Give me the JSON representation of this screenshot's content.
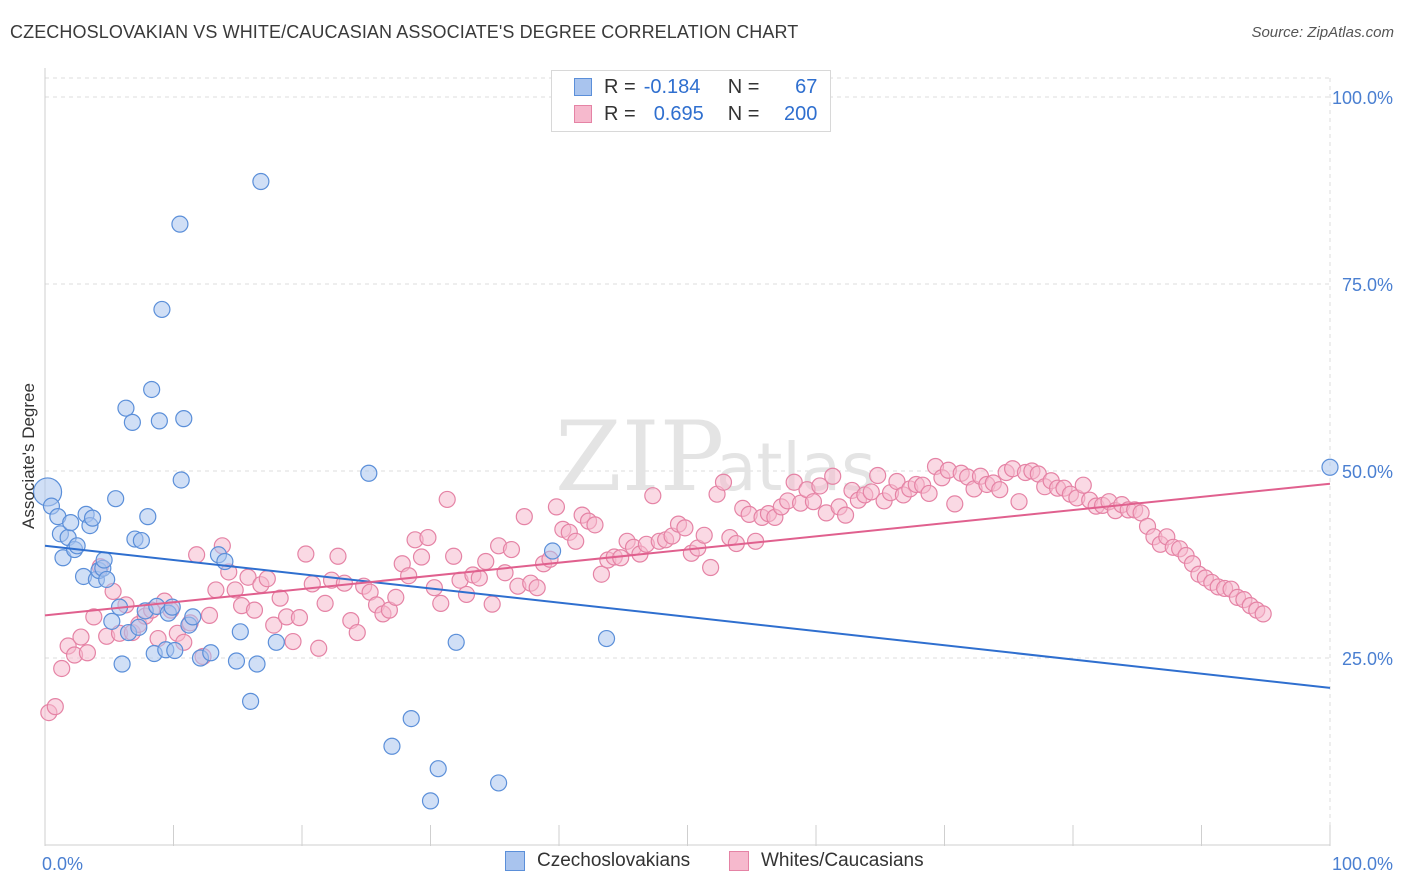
{
  "title": "CZECHOSLOVAKIAN VS WHITE/CAUCASIAN ASSOCIATE'S DEGREE CORRELATION CHART",
  "source": "Source: ZipAtlas.com",
  "watermark": {
    "zip": "ZIP",
    "atlas": "atlas"
  },
  "legend": {
    "rows": [
      {
        "r_label": "R =",
        "r_value": "-0.184",
        "n_label": "N =",
        "n_value": "67"
      },
      {
        "r_label": "R =",
        "r_value": "0.695",
        "n_label": "N =",
        "n_value": "200"
      }
    ]
  },
  "bottom_legend": [
    "Czechoslovakians",
    "Whites/Caucasians"
  ],
  "colors": {
    "blue_fill": "#a9c4ee",
    "blue_stroke": "#5b8fd9",
    "blue_line": "#2f6fcf",
    "pink_fill": "#f6b9cd",
    "pink_stroke": "#e583a5",
    "pink_line": "#e0608e",
    "tick_text": "#4a7fd1",
    "grid": "#dddddd"
  },
  "chart_data": {
    "type": "scatter",
    "title": "CZECHOSLOVAKIAN VS WHITE/CAUCASIAN ASSOCIATE'S DEGREE CORRELATION CHART",
    "xlabel": "",
    "ylabel": "Associate's Degree",
    "xlim": [
      0,
      100
    ],
    "ylim": [
      0,
      100
    ],
    "x_tick_labels": [
      "0.0%",
      "100.0%"
    ],
    "y_tick_labels": [
      "25.0%",
      "50.0%",
      "75.0%",
      "100.0%"
    ],
    "y_ticks": [
      25,
      50,
      75,
      100
    ],
    "grid": true,
    "legend_position": "top-center",
    "series": [
      {
        "name": "Czechoslovakians",
        "r": -0.184,
        "n": 67,
        "trend": {
          "x": [
            0,
            100
          ],
          "y": [
            40.0,
            21.0
          ]
        },
        "points": [
          [
            0.2,
            47.2
          ],
          [
            0.5,
            45.3
          ],
          [
            1.0,
            43.9
          ],
          [
            1.2,
            41.6
          ],
          [
            1.4,
            38.4
          ],
          [
            1.8,
            41.1
          ],
          [
            2.0,
            43.1
          ],
          [
            2.3,
            39.5
          ],
          [
            2.5,
            40.0
          ],
          [
            3.0,
            35.9
          ],
          [
            3.2,
            44.2
          ],
          [
            3.5,
            42.7
          ],
          [
            3.7,
            43.7
          ],
          [
            4.0,
            35.5
          ],
          [
            4.2,
            36.7
          ],
          [
            4.5,
            37.0
          ],
          [
            4.6,
            38.1
          ],
          [
            4.8,
            35.5
          ],
          [
            5.2,
            29.9
          ],
          [
            5.5,
            46.3
          ],
          [
            5.8,
            31.8
          ],
          [
            6.0,
            24.2
          ],
          [
            6.3,
            58.4
          ],
          [
            6.5,
            28.4
          ],
          [
            6.8,
            56.5
          ],
          [
            7.0,
            40.9
          ],
          [
            7.3,
            29.1
          ],
          [
            7.5,
            40.7
          ],
          [
            7.8,
            31.3
          ],
          [
            8.0,
            43.9
          ],
          [
            8.3,
            60.9
          ],
          [
            8.5,
            25.6
          ],
          [
            8.7,
            31.9
          ],
          [
            8.9,
            56.7
          ],
          [
            9.1,
            71.6
          ],
          [
            9.4,
            26.1
          ],
          [
            9.6,
            31.0
          ],
          [
            9.9,
            31.8
          ],
          [
            10.1,
            26.0
          ],
          [
            10.5,
            83.0
          ],
          [
            10.6,
            48.8
          ],
          [
            10.8,
            57.0
          ],
          [
            11.2,
            29.4
          ],
          [
            11.5,
            30.5
          ],
          [
            12.1,
            25.0
          ],
          [
            12.9,
            25.7
          ],
          [
            13.5,
            38.8
          ],
          [
            14.0,
            37.9
          ],
          [
            14.9,
            24.6
          ],
          [
            15.2,
            28.5
          ],
          [
            16.0,
            19.2
          ],
          [
            16.5,
            24.2
          ],
          [
            16.8,
            88.7
          ],
          [
            18.0,
            27.1
          ],
          [
            25.2,
            49.7
          ],
          [
            27.0,
            13.2
          ],
          [
            28.5,
            16.9
          ],
          [
            30.0,
            5.9
          ],
          [
            30.6,
            10.2
          ],
          [
            32.0,
            27.1
          ],
          [
            35.3,
            8.3
          ],
          [
            39.5,
            39.3
          ],
          [
            43.7,
            27.6
          ],
          [
            100.0,
            50.5
          ]
        ]
      },
      {
        "name": "Whites/Caucasians",
        "r": 0.695,
        "n": 200,
        "trend": {
          "x": [
            0,
            100
          ],
          "y": [
            30.7,
            48.3
          ]
        },
        "points": [
          [
            0.3,
            17.7
          ],
          [
            0.8,
            18.5
          ],
          [
            1.3,
            23.6
          ],
          [
            1.8,
            26.6
          ],
          [
            2.3,
            25.4
          ],
          [
            2.8,
            27.8
          ],
          [
            3.3,
            25.7
          ],
          [
            3.8,
            30.5
          ],
          [
            4.3,
            37.2
          ],
          [
            4.8,
            27.9
          ],
          [
            5.3,
            33.9
          ],
          [
            5.8,
            28.3
          ],
          [
            6.3,
            32.1
          ],
          [
            6.8,
            28.4
          ],
          [
            7.3,
            29.5
          ],
          [
            7.8,
            30.6
          ],
          [
            8.3,
            31.4
          ],
          [
            8.8,
            27.6
          ],
          [
            9.3,
            32.6
          ],
          [
            9.8,
            31.4
          ],
          [
            10.3,
            28.3
          ],
          [
            10.8,
            27.1
          ],
          [
            11.3,
            29.7
          ],
          [
            11.8,
            38.8
          ],
          [
            12.3,
            25.2
          ],
          [
            12.8,
            30.7
          ],
          [
            13.3,
            34.1
          ],
          [
            13.8,
            40.0
          ],
          [
            14.3,
            36.5
          ],
          [
            14.8,
            34.1
          ],
          [
            15.3,
            32.0
          ],
          [
            15.8,
            35.8
          ],
          [
            16.3,
            31.4
          ],
          [
            16.8,
            34.8
          ],
          [
            17.3,
            35.6
          ],
          [
            17.8,
            29.4
          ],
          [
            18.3,
            33.0
          ],
          [
            18.8,
            30.5
          ],
          [
            19.3,
            27.2
          ],
          [
            19.8,
            30.4
          ],
          [
            20.3,
            38.9
          ],
          [
            20.8,
            34.9
          ],
          [
            21.3,
            26.3
          ],
          [
            21.8,
            32.3
          ],
          [
            22.3,
            35.4
          ],
          [
            22.8,
            38.6
          ],
          [
            23.3,
            35.0
          ],
          [
            23.8,
            30.0
          ],
          [
            24.3,
            28.4
          ],
          [
            24.8,
            34.6
          ],
          [
            25.3,
            33.8
          ],
          [
            25.8,
            32.1
          ],
          [
            26.3,
            30.9
          ],
          [
            26.8,
            31.4
          ],
          [
            27.3,
            33.1
          ],
          [
            27.8,
            37.6
          ],
          [
            28.3,
            36.0
          ],
          [
            28.8,
            40.8
          ],
          [
            29.3,
            38.5
          ],
          [
            29.8,
            41.1
          ],
          [
            30.3,
            34.4
          ],
          [
            30.8,
            32.3
          ],
          [
            31.3,
            46.2
          ],
          [
            31.8,
            38.6
          ],
          [
            32.3,
            35.4
          ],
          [
            32.8,
            33.5
          ],
          [
            33.3,
            36.1
          ],
          [
            33.8,
            35.7
          ],
          [
            34.3,
            37.9
          ],
          [
            34.8,
            32.2
          ],
          [
            35.3,
            40.0
          ],
          [
            35.8,
            36.4
          ],
          [
            36.3,
            39.5
          ],
          [
            36.8,
            34.6
          ],
          [
            37.3,
            43.9
          ],
          [
            37.8,
            35.0
          ],
          [
            38.3,
            34.4
          ],
          [
            38.8,
            37.6
          ],
          [
            39.3,
            38.2
          ],
          [
            39.8,
            45.2
          ],
          [
            40.3,
            42.2
          ],
          [
            40.8,
            41.8
          ],
          [
            41.3,
            40.6
          ],
          [
            41.8,
            44.1
          ],
          [
            42.3,
            43.3
          ],
          [
            42.8,
            42.8
          ],
          [
            43.3,
            36.2
          ],
          [
            43.8,
            38.1
          ],
          [
            44.3,
            38.5
          ],
          [
            44.8,
            38.4
          ],
          [
            45.3,
            40.6
          ],
          [
            45.8,
            39.8
          ],
          [
            46.3,
            38.9
          ],
          [
            46.8,
            40.2
          ],
          [
            47.3,
            46.7
          ],
          [
            47.8,
            40.6
          ],
          [
            48.3,
            40.8
          ],
          [
            48.8,
            41.3
          ],
          [
            49.3,
            42.9
          ],
          [
            49.8,
            42.4
          ],
          [
            50.3,
            39.0
          ],
          [
            50.8,
            39.7
          ],
          [
            51.3,
            41.4
          ],
          [
            51.8,
            37.1
          ],
          [
            52.3,
            46.9
          ],
          [
            52.8,
            48.5
          ],
          [
            53.3,
            41.1
          ],
          [
            53.8,
            40.3
          ],
          [
            54.3,
            45.0
          ],
          [
            54.8,
            44.2
          ],
          [
            55.3,
            40.6
          ],
          [
            55.8,
            43.8
          ],
          [
            56.3,
            44.3
          ],
          [
            56.8,
            43.8
          ],
          [
            57.3,
            45.2
          ],
          [
            57.8,
            46.0
          ],
          [
            58.3,
            48.5
          ],
          [
            58.8,
            45.7
          ],
          [
            59.3,
            47.5
          ],
          [
            59.8,
            45.9
          ],
          [
            60.3,
            48.0
          ],
          [
            60.8,
            44.4
          ],
          [
            61.3,
            49.3
          ],
          [
            61.8,
            45.2
          ],
          [
            62.3,
            44.1
          ],
          [
            62.8,
            47.4
          ],
          [
            63.3,
            46.1
          ],
          [
            63.8,
            46.8
          ],
          [
            64.3,
            47.2
          ],
          [
            64.8,
            49.4
          ],
          [
            65.3,
            46.0
          ],
          [
            65.8,
            47.1
          ],
          [
            66.3,
            48.6
          ],
          [
            66.8,
            46.8
          ],
          [
            67.3,
            47.6
          ],
          [
            67.8,
            48.2
          ],
          [
            68.3,
            48.1
          ],
          [
            68.8,
            47.0
          ],
          [
            69.3,
            50.6
          ],
          [
            69.8,
            49.1
          ],
          [
            70.3,
            50.1
          ],
          [
            70.8,
            45.6
          ],
          [
            71.3,
            49.7
          ],
          [
            71.8,
            49.2
          ],
          [
            72.3,
            47.6
          ],
          [
            72.8,
            49.3
          ],
          [
            73.3,
            48.2
          ],
          [
            73.8,
            48.4
          ],
          [
            74.3,
            47.5
          ],
          [
            74.8,
            49.8
          ],
          [
            75.3,
            50.3
          ],
          [
            75.8,
            45.9
          ],
          [
            76.3,
            49.8
          ],
          [
            76.8,
            50.0
          ],
          [
            77.3,
            49.6
          ],
          [
            77.8,
            47.9
          ],
          [
            78.3,
            48.7
          ],
          [
            78.8,
            47.7
          ],
          [
            79.3,
            47.7
          ],
          [
            79.8,
            46.9
          ],
          [
            80.3,
            46.4
          ],
          [
            80.8,
            48.1
          ],
          [
            81.3,
            46.1
          ],
          [
            81.8,
            45.3
          ],
          [
            82.3,
            45.4
          ],
          [
            82.8,
            45.9
          ],
          [
            83.3,
            44.7
          ],
          [
            83.8,
            45.5
          ],
          [
            84.3,
            44.8
          ],
          [
            84.8,
            44.8
          ],
          [
            85.3,
            44.4
          ],
          [
            85.8,
            42.6
          ],
          [
            86.3,
            41.2
          ],
          [
            86.8,
            40.2
          ],
          [
            87.3,
            41.2
          ],
          [
            87.8,
            39.8
          ],
          [
            88.3,
            39.6
          ],
          [
            88.8,
            38.7
          ],
          [
            89.3,
            37.6
          ],
          [
            89.8,
            36.2
          ],
          [
            90.3,
            35.7
          ],
          [
            90.8,
            35.1
          ],
          [
            91.3,
            34.5
          ],
          [
            91.8,
            34.3
          ],
          [
            92.3,
            34.2
          ],
          [
            92.8,
            33.1
          ],
          [
            93.3,
            32.8
          ],
          [
            93.8,
            32.0
          ],
          [
            94.3,
            31.4
          ],
          [
            94.8,
            30.9
          ]
        ]
      }
    ]
  }
}
